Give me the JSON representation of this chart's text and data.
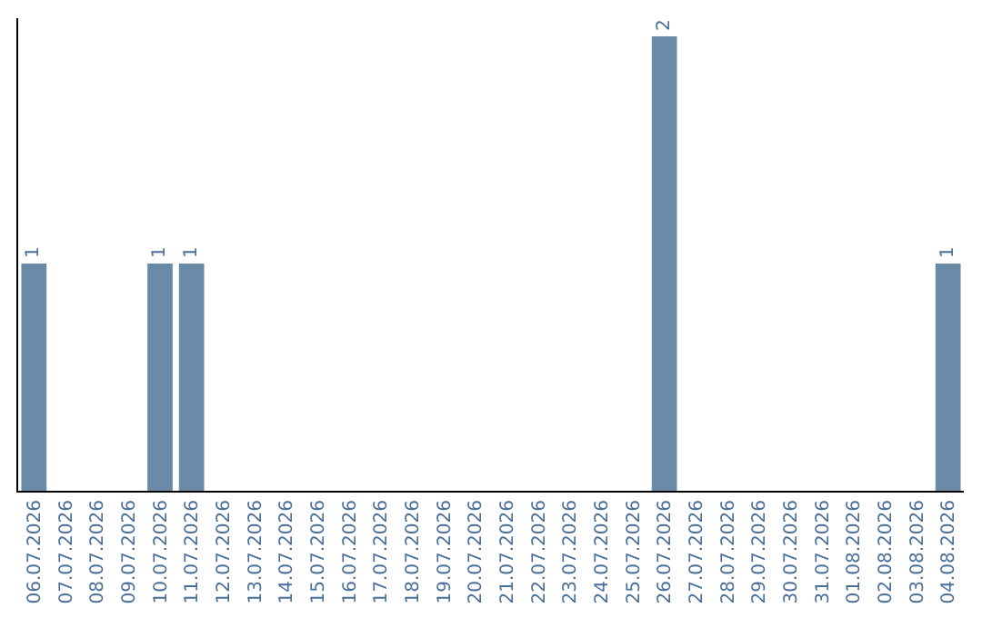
{
  "chart_data": {
    "type": "bar",
    "categories": [
      "06.07.2026",
      "07.07.2026",
      "08.07.2026",
      "09.07.2026",
      "10.07.2026",
      "11.07.2026",
      "12.07.2026",
      "13.07.2026",
      "14.07.2026",
      "15.07.2026",
      "16.07.2026",
      "17.07.2026",
      "18.07.2026",
      "19.07.2026",
      "20.07.2026",
      "21.07.2026",
      "22.07.2026",
      "23.07.2026",
      "24.07.2026",
      "25.07.2026",
      "26.07.2026",
      "27.07.2026",
      "28.07.2026",
      "29.07.2026",
      "30.07.2026",
      "31.07.2026",
      "01.08.2026",
      "02.08.2026",
      "03.08.2026",
      "04.08.2026"
    ],
    "values": [
      1,
      0,
      0,
      0,
      1,
      1,
      0,
      0,
      0,
      0,
      0,
      0,
      0,
      0,
      0,
      0,
      0,
      0,
      0,
      0,
      2,
      0,
      0,
      0,
      0,
      0,
      0,
      0,
      0,
      1
    ],
    "value_labels": [
      "1",
      null,
      null,
      null,
      "1",
      "1",
      null,
      null,
      null,
      null,
      null,
      null,
      null,
      null,
      null,
      null,
      null,
      null,
      null,
      null,
      "2",
      null,
      null,
      null,
      null,
      null,
      null,
      null,
      null,
      "1"
    ],
    "color": "#6b8aa8",
    "ylim": [
      0,
      2.08
    ],
    "tick_labels": "x"
  }
}
